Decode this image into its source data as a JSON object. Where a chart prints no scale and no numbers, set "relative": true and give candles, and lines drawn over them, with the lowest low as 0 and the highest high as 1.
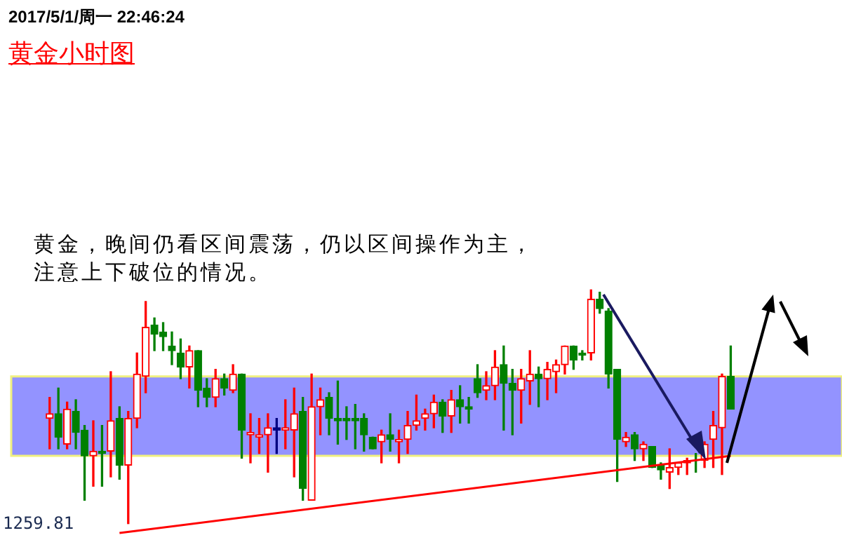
{
  "chart_data": {
    "type": "candlestick",
    "title": "黄金小时图",
    "relative": true,
    "annotations": [
      "2017/5/1/周一 22:46:24",
      "黄金，晚间仍看区间震荡，仍以区间操作为主，注意上下破位的情况。",
      "1259.81"
    ],
    "categories": [
      null,
      null,
      null,
      null,
      null,
      null,
      null,
      null,
      null,
      null,
      null,
      null,
      null,
      null,
      null,
      null,
      null,
      null,
      null,
      null,
      null,
      null,
      null,
      null,
      null,
      null,
      null,
      null,
      null,
      null,
      null,
      null,
      null,
      null,
      null,
      null,
      null,
      null,
      null,
      null,
      null,
      null,
      null,
      null,
      null,
      null,
      null,
      null,
      null,
      null,
      null,
      null,
      null,
      null,
      null,
      null,
      null,
      null,
      null,
      null,
      null,
      null,
      null,
      null,
      null,
      null,
      null,
      null,
      null,
      null,
      null,
      null,
      null,
      null,
      null,
      null,
      null,
      null,
      null
    ],
    "ohlc": [
      [
        0.45,
        0.54,
        0.32,
        0.47
      ],
      [
        0.47,
        0.58,
        0.32,
        0.37
      ],
      [
        0.34,
        0.52,
        0.32,
        0.49
      ],
      [
        0.48,
        0.53,
        0.32,
        0.39
      ],
      [
        0.4,
        0.42,
        0.1,
        0.29
      ],
      [
        0.29,
        0.44,
        0.16,
        0.31
      ],
      [
        0.31,
        0.42,
        0.16,
        0.3
      ],
      [
        0.31,
        0.65,
        0.2,
        0.44
      ],
      [
        0.45,
        0.5,
        0.19,
        0.25
      ],
      [
        0.25,
        0.48,
        0,
        0.45
      ],
      [
        0.45,
        0.73,
        0.41,
        0.64
      ],
      [
        0.63,
        0.95,
        0.56,
        0.84
      ],
      [
        0.85,
        0.88,
        0.74,
        0.81
      ],
      [
        0.82,
        0.86,
        0.74,
        0.8
      ],
      [
        0.76,
        0.82,
        0.68,
        0.74
      ],
      [
        0.73,
        0.79,
        0.62,
        0.67
      ],
      [
        0.67,
        0.76,
        0.58,
        0.74
      ],
      [
        0.74,
        0.74,
        0.5,
        0.57
      ],
      [
        0.58,
        0.62,
        0.5,
        0.54
      ],
      [
        0.54,
        0.66,
        0.5,
        0.62
      ],
      [
        0.62,
        0.64,
        0.55,
        0.58
      ],
      [
        0.57,
        0.68,
        0.56,
        0.64
      ],
      [
        0.64,
        0.64,
        0.28,
        0.4
      ],
      [
        0.38,
        0.47,
        0.26,
        0.39
      ],
      [
        0.37,
        0.45,
        0.3,
        0.38
      ],
      [
        0.38,
        0.47,
        0.22,
        0.41
      ],
      [
        0.41,
        0.45,
        0.3,
        0.4
      ],
      [
        0.4,
        0.53,
        0.32,
        0.41
      ],
      [
        0.4,
        0.58,
        0.2,
        0.47
      ],
      [
        0.48,
        0.54,
        0.1,
        0.15
      ],
      [
        0.1,
        0.64,
        0.1,
        0.5
      ],
      [
        0.5,
        0.58,
        0.38,
        0.53
      ],
      [
        0.54,
        0.56,
        0.38,
        0.45
      ],
      [
        0.45,
        0.61,
        0.34,
        0.44
      ],
      [
        0.45,
        0.5,
        0.36,
        0.44
      ],
      [
        0.45,
        0.51,
        0.32,
        0.44
      ],
      [
        0.45,
        0.47,
        0.31,
        0.38
      ],
      [
        0.37,
        0.37,
        0.32,
        0.32
      ],
      [
        0.35,
        0.4,
        0.26,
        0.38
      ],
      [
        0.38,
        0.47,
        0.31,
        0.36
      ],
      [
        0.35,
        0.4,
        0.26,
        0.36
      ],
      [
        0.36,
        0.48,
        0.3,
        0.42
      ],
      [
        0.42,
        0.55,
        0.4,
        0.44
      ],
      [
        0.45,
        0.49,
        0.4,
        0.47
      ],
      [
        0.47,
        0.55,
        0.41,
        0.52
      ],
      [
        0.52,
        0.53,
        0.39,
        0.46
      ],
      [
        0.46,
        0.57,
        0.39,
        0.53
      ],
      [
        0.53,
        0.59,
        0.43,
        0.5
      ],
      [
        0.5,
        0.54,
        0.43,
        0.49
      ],
      [
        0.62,
        0.68,
        0.54,
        0.56
      ],
      [
        0.57,
        0.65,
        0.53,
        0.59
      ],
      [
        0.59,
        0.74,
        0.53,
        0.67
      ],
      [
        0.68,
        0.76,
        0.4,
        0.6
      ],
      [
        0.6,
        0.66,
        0.38,
        0.57
      ],
      [
        0.57,
        0.66,
        0.43,
        0.62
      ],
      [
        0.61,
        0.74,
        0.51,
        0.64
      ],
      [
        0.64,
        0.67,
        0.5,
        0.62
      ],
      [
        0.62,
        0.69,
        0.53,
        0.66
      ],
      [
        0.65,
        0.7,
        0.56,
        0.68
      ],
      [
        0.68,
        0.76,
        0.64,
        0.76
      ],
      [
        0.76,
        0.76,
        0.66,
        0.7
      ],
      [
        0.73,
        0.74,
        0.7,
        0.72
      ],
      [
        0.73,
        1,
        0.7,
        0.96
      ],
      [
        0.96,
        0.99,
        0.9,
        0.92
      ],
      [
        0.91,
        0.92,
        0.58,
        0.64
      ],
      [
        0.66,
        0.66,
        0.18,
        0.36
      ],
      [
        0.35,
        0.39,
        0.33,
        0.37
      ],
      [
        0.38,
        0.39,
        0.27,
        0.32
      ],
      [
        0.32,
        0.35,
        0.27,
        0.34
      ],
      [
        0.33,
        0.33,
        0.24,
        0.24
      ],
      [
        0.25,
        0.26,
        0.19,
        0.23
      ],
      [
        0.22,
        0.32,
        0.15,
        0.24
      ],
      [
        0.24,
        0.26,
        0.21,
        0.26
      ],
      [
        0.26,
        0.28,
        0.21,
        0.27
      ],
      [
        0.27,
        0.3,
        0.22,
        0.27
      ],
      [
        0.27,
        0.35,
        0.24,
        0.34
      ],
      [
        0.36,
        0.48,
        0.24,
        0.42
      ],
      [
        0.41,
        0.64,
        0.21,
        0.63
      ],
      [
        0.63,
        0.76,
        0.49,
        0.49
      ]
    ],
    "colors": [
      "#ff0000",
      "#008000",
      "#ff0000",
      "#008000",
      "#008000",
      "#ff0000",
      "#008000",
      "#ff0000",
      "#008000",
      "#ff0000",
      "#ff0000",
      "#ff0000",
      "#008000",
      "#008000",
      "#008000",
      "#008000",
      "#ff0000",
      "#008000",
      "#008000",
      "#ff0000",
      "#008000",
      "#ff0000",
      "#008000",
      "#ff0000",
      "#ff0000",
      "#ff0000",
      "#000080",
      "#ff0000",
      "#ff0000",
      "#008000",
      "#ff0000",
      "#ff0000",
      "#008000",
      "#008000",
      "#008000",
      "#008000",
      "#008000",
      "#008000",
      "#ff0000",
      "#008000",
      "#ff0000",
      "#ff0000",
      "#ff0000",
      "#ff0000",
      "#ff0000",
      "#008000",
      "#ff0000",
      "#008000",
      "#008000",
      "#008000",
      "#ff0000",
      "#ff0000",
      "#008000",
      "#008000",
      "#ff0000",
      "#ff0000",
      "#008000",
      "#ff0000",
      "#ff0000",
      "#ff0000",
      "#008000",
      "#008000",
      "#ff0000",
      "#008000",
      "#008000",
      "#008000",
      "#ff0000",
      "#008000",
      "#ff0000",
      "#008000",
      "#008000",
      "#ff0000",
      "#ff0000",
      "#ff0000",
      "#008000",
      "#ff0000",
      "#ff0000",
      "#ff0000",
      "#008000"
    ],
    "series": [
      {
        "type": "line",
        "color": "#ff0000",
        "values": [
          null,
          null,
          null,
          null,
          null,
          null,
          null,
          null,
          -0.04,
          null,
          null,
          null,
          null,
          null,
          null,
          null,
          null,
          null,
          null,
          null,
          null,
          null,
          null,
          null,
          null,
          null,
          null,
          null,
          null,
          null,
          null,
          null,
          null,
          null,
          null,
          null,
          null,
          null,
          null,
          null,
          null,
          null,
          null,
          null,
          null,
          null,
          null,
          null,
          null,
          null,
          null,
          null,
          null,
          null,
          null,
          null,
          null,
          null,
          null,
          null,
          null,
          null,
          null,
          null,
          null,
          null,
          null,
          null,
          null,
          null,
          null,
          null,
          null,
          null,
          null,
          null,
          null,
          null,
          0.29
        ]
      }
    ],
    "bands": [
      {
        "axis": "y",
        "from": 0.29,
        "to": 0.63,
        "color": "#8080ff"
      }
    ],
    "legend": false
  }
}
